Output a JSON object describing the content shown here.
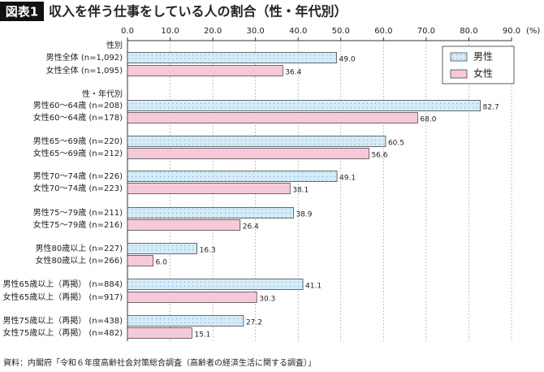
{
  "chart_data": {
    "type": "hbar",
    "figure_label": "図表1",
    "title": "収入を伴う仕事をしている人の割合（性・年代別）",
    "source": "資料：内閣府「令和６年度高齢社会対策総合調査（高齢者の経済生活に関する調査）」",
    "group_labels": [
      "性別",
      "性・年代別"
    ],
    "categories": [
      "男性全体 (n=1,092)",
      "女性全体 (n=1,095)",
      "男性60～64歳 (n=208)",
      "女性60～64歳 (n=178)",
      "男性65～69歳 (n=220)",
      "女性65～69歳 (n=212)",
      "男性70～74歳 (n=226)",
      "女性70～74歳 (n=223)",
      "男性75～79歳 (n=211)",
      "女性75～79歳 (n=216)",
      "男性80歳以上 (n=227)",
      "女性80歳以上 (n=266)",
      "男性65歳以上（再掲） (n=884)",
      "女性65歳以上（再掲） (n=917)",
      "男性75歳以上（再掲） (n=438)",
      "女性75歳以上（再掲） (n=482)"
    ],
    "series": [
      {
        "name": "男性",
        "color": "#d4ebf8",
        "values": [
          49.0,
          null,
          82.7,
          null,
          60.5,
          null,
          49.1,
          null,
          38.9,
          null,
          16.3,
          null,
          41.1,
          null,
          27.2,
          null
        ],
        "value_labels": [
          "49.0",
          null,
          "82.7",
          null,
          "60.5",
          null,
          "49.1",
          null,
          "38.9",
          null,
          "16.3",
          null,
          "41.1",
          null,
          "27.2",
          null
        ]
      },
      {
        "name": "女性",
        "color": "#f6c9da",
        "values": [
          null,
          36.4,
          null,
          68.0,
          null,
          56.6,
          null,
          38.1,
          null,
          26.4,
          null,
          6.0,
          null,
          30.3,
          null,
          15.1
        ],
        "value_labels": [
          null,
          "36.4",
          null,
          "68.0",
          null,
          "56.6",
          null,
          "38.1",
          null,
          "26.4",
          null,
          "6.0",
          null,
          "30.3",
          null,
          "15.1"
        ]
      }
    ],
    "xlim": [
      0,
      90
    ],
    "xticks": [
      {
        "value": 0,
        "label": "0.0"
      },
      {
        "value": 10,
        "label": "10.0"
      },
      {
        "value": 20,
        "label": "20.0"
      },
      {
        "value": 30,
        "label": "30.0"
      },
      {
        "value": 40,
        "label": "40.0"
      },
      {
        "value": 50,
        "label": "50.0"
      },
      {
        "value": 60,
        "label": "60.0"
      },
      {
        "value": 70,
        "label": "70.0"
      },
      {
        "value": 80,
        "label": "80.0"
      },
      {
        "value": 90,
        "label": "90.0"
      }
    ],
    "x_unit": "(%)",
    "grid": true,
    "legend": "top-right"
  }
}
